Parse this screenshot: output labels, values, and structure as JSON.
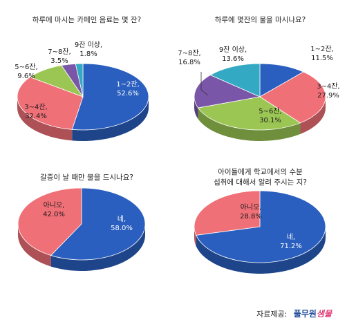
{
  "colors": {
    "blue": "#2a5fbf",
    "red": "#f07078",
    "green": "#9cc654",
    "purple": "#7a56a8",
    "teal": "#34a9c4"
  },
  "chart_data": [
    {
      "type": "pie",
      "title": "하루에 마시는 카페인 음료는 몇 잔?",
      "slices": [
        {
          "label_line1": "1~2잔,",
          "label_line2": "52.6%",
          "value": 52.6,
          "color": "#2a5fbf"
        },
        {
          "label_line1": "3~4잔,",
          "label_line2": "32.4%",
          "value": 32.4,
          "color": "#f07078"
        },
        {
          "label_line1": "5~6잔,",
          "label_line2": "9.6%",
          "value": 9.6,
          "color": "#9cc654"
        },
        {
          "label_line1": "7~8잔,",
          "label_line2": "3.5%",
          "value": 3.5,
          "color": "#7a56a8"
        },
        {
          "label_line1": "9잔 이상,",
          "label_line2": "1.8%",
          "value": 1.8,
          "color": "#34a9c4"
        }
      ]
    },
    {
      "type": "pie",
      "title": "하루에  몇잔의 물을 마시나요?",
      "slices": [
        {
          "label_line1": "1~2잔,",
          "label_line2": "11.5%",
          "value": 11.5,
          "color": "#2a5fbf"
        },
        {
          "label_line1": "3~4잔,",
          "label_line2": "27.9%",
          "value": 27.9,
          "color": "#f07078"
        },
        {
          "label_line1": "5~6잔,",
          "label_line2": "30.1%",
          "value": 30.1,
          "color": "#9cc654"
        },
        {
          "label_line1": "7~8잔,",
          "label_line2": "16.8%",
          "value": 16.8,
          "color": "#7a56a8"
        },
        {
          "label_line1": "9잔 이상,",
          "label_line2": "13.6%",
          "value": 13.6,
          "color": "#34a9c4"
        }
      ]
    },
    {
      "type": "pie",
      "title": "갈증이 날 때만 물을 드시나요?",
      "slices": [
        {
          "label_line1": "네,",
          "label_line2": "58.0%",
          "value": 58.0,
          "color": "#2a5fbf"
        },
        {
          "label_line1": "아니오,",
          "label_line2": "42.0%",
          "value": 42.0,
          "color": "#f07078"
        }
      ]
    },
    {
      "type": "pie",
      "title_line1": "아이들에게 학교에서의 수분",
      "title_line2": "섭취에 대해서 알려 주시는 지?",
      "slices": [
        {
          "label_line1": "네,",
          "label_line2": "71.2%",
          "value": 71.2,
          "color": "#2a5fbf"
        },
        {
          "label_line1": "아니오,",
          "label_line2": "28.8%",
          "value": 28.8,
          "color": "#f07078"
        }
      ]
    }
  ],
  "footer": {
    "source_label": "자료제공:",
    "brand_main": "풀무원",
    "brand_accent": "샘물"
  }
}
